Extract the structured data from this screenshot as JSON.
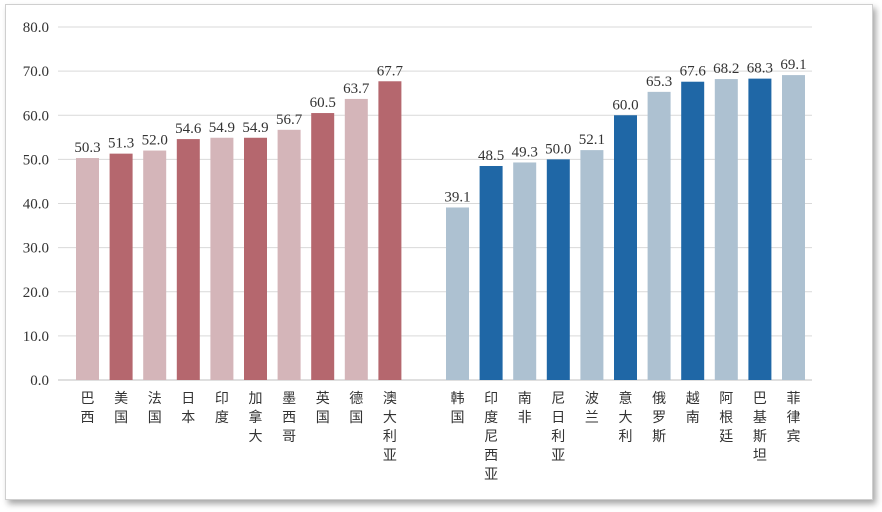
{
  "chart_data": {
    "type": "bar",
    "ylim": [
      0,
      80
    ],
    "yticks": [
      "0.0",
      "10.0",
      "20.0",
      "30.0",
      "40.0",
      "50.0",
      "60.0",
      "70.0",
      "80.0"
    ],
    "grid": true,
    "colors": {
      "light_red": "#d4b5b9",
      "dark_red": "#b5676e",
      "light_blue": "#adc1d1",
      "dark_blue": "#1f67a6",
      "grid": "#d9d9d9"
    },
    "groups": [
      {
        "categories": [
          "巴西",
          "美国",
          "法国",
          "日本",
          "印度",
          "加拿大",
          "墨西哥",
          "英国",
          "德国",
          "澳大利亚"
        ],
        "values": [
          50.3,
          51.3,
          52.0,
          54.6,
          54.9,
          54.9,
          56.7,
          60.5,
          63.7,
          67.7
        ],
        "labels": [
          "50.3",
          "51.3",
          "52.0",
          "54.6",
          "54.9",
          "54.9",
          "56.7",
          "60.5",
          "63.7",
          "67.7"
        ],
        "colors": [
          "light_red",
          "dark_red",
          "light_red",
          "dark_red",
          "light_red",
          "dark_red",
          "light_red",
          "dark_red",
          "light_red",
          "dark_red"
        ]
      },
      {
        "categories": [
          "韩国",
          "印度尼西亚",
          "南非",
          "尼日利亚",
          "波兰",
          "意大利",
          "俄罗斯",
          "越南",
          "阿根廷",
          "巴基斯坦",
          "菲律宾"
        ],
        "values": [
          39.1,
          48.5,
          49.3,
          50.0,
          52.1,
          60.0,
          65.3,
          67.6,
          68.2,
          68.3,
          69.1
        ],
        "labels": [
          "39.1",
          "48.5",
          "49.3",
          "50.0",
          "52.1",
          "60.0",
          "65.3",
          "67.6",
          "68.2",
          "68.3",
          "69.1"
        ],
        "colors": [
          "light_blue",
          "dark_blue",
          "light_blue",
          "dark_blue",
          "light_blue",
          "dark_blue",
          "light_blue",
          "dark_blue",
          "light_blue",
          "dark_blue",
          "light_blue"
        ]
      }
    ]
  }
}
